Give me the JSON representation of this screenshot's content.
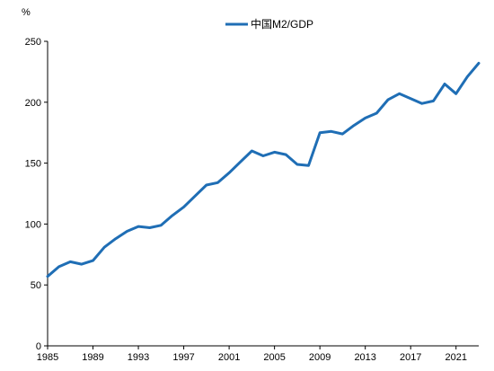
{
  "chart_data": {
    "type": "line",
    "title": "",
    "xlabel": "",
    "ylabel": "%",
    "ylim": [
      0,
      250
    ],
    "xlim": [
      1985,
      2023
    ],
    "yticks": [
      0,
      50,
      100,
      150,
      200,
      250
    ],
    "xticks": [
      1985,
      1989,
      1993,
      1997,
      2001,
      2005,
      2009,
      2013,
      2017,
      2021
    ],
    "grid": false,
    "legend": "top-center",
    "series": [
      {
        "name": "中国M2/GDP",
        "color": "#1f6eb5",
        "x": [
          1985,
          1986,
          1987,
          1988,
          1989,
          1990,
          1991,
          1992,
          1993,
          1994,
          1995,
          1996,
          1997,
          1998,
          1999,
          2000,
          2001,
          2002,
          2003,
          2004,
          2005,
          2006,
          2007,
          2008,
          2009,
          2010,
          2011,
          2012,
          2013,
          2014,
          2015,
          2016,
          2017,
          2018,
          2019,
          2020,
          2021,
          2022,
          2023
        ],
        "values": [
          57,
          65,
          69,
          67,
          70,
          81,
          88,
          94,
          98,
          97,
          99,
          107,
          114,
          123,
          132,
          134,
          142,
          151,
          160,
          156,
          159,
          157,
          149,
          148,
          175,
          176,
          174,
          181,
          187,
          191,
          202,
          207,
          203,
          199,
          201,
          215,
          207,
          221,
          232
        ]
      }
    ]
  }
}
